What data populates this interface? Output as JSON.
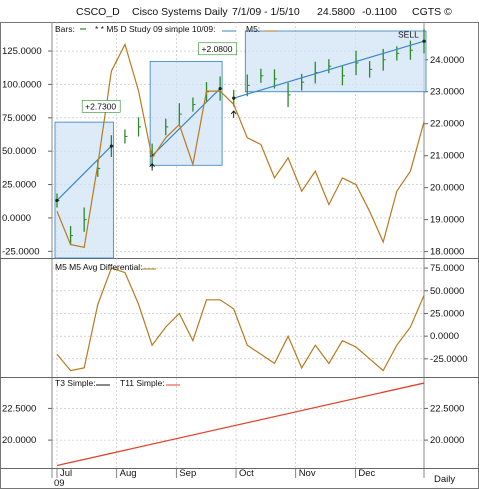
{
  "header": {
    "symbol": "CSCO_D",
    "name": "Cisco Systems Daily",
    "range": "7/1/09 - 1/5/10",
    "last": "24.5800",
    "change": "-0.1100",
    "brand": "CGTS ©"
  },
  "chart_data": [
    {
      "type": "line",
      "panel": "price",
      "legend": [
        "Bars:",
        "* * M5 D Study 09 simple 10/09:",
        "M5:"
      ],
      "annotations": [
        "+2.7300",
        "+2.0800",
        "SELL"
      ],
      "left_axis_ticks": [
        "125.0000",
        "100.0000",
        "75.0000",
        "50.0000",
        "25.0000",
        "0.0000",
        "-25.0000"
      ],
      "right_axis_ticks": [
        "24.0000",
        "23.0000",
        "22.0000",
        "21.0000",
        "20.0000",
        "19.0000",
        "18.0000"
      ],
      "left_ylim": [
        -30,
        140
      ],
      "right_ylim": [
        17.8,
        24.9
      ],
      "x": [
        "7/1",
        "7/8",
        "7/15",
        "7/22",
        "7/29",
        "8/5",
        "8/12",
        "8/19",
        "8/26",
        "9/2",
        "9/9",
        "9/16",
        "9/23",
        "9/30",
        "10/7",
        "10/14",
        "10/21",
        "10/28",
        "11/4",
        "11/11",
        "11/18",
        "11/25",
        "12/2",
        "12/9",
        "12/16",
        "12/23",
        "12/30",
        "1/5"
      ],
      "series": [
        {
          "role": "price",
          "values": [
            19.6,
            18.5,
            19.0,
            20.6,
            21.3,
            21.6,
            21.9,
            21.0,
            21.9,
            22.3,
            22.6,
            23.0,
            23.1,
            22.8,
            23.2,
            23.5,
            23.4,
            22.9,
            23.3,
            23.6,
            23.8,
            23.5,
            23.9,
            23.7,
            24.0,
            24.2,
            24.3,
            24.58
          ]
        },
        {
          "role": "oscillator",
          "values": [
            5,
            -20,
            -22,
            40,
            110,
            130,
            95,
            45,
            60,
            70,
            40,
            95,
            95,
            85,
            60,
            55,
            30,
            45,
            20,
            35,
            10,
            30,
            25,
            5,
            -18,
            20,
            35,
            72
          ]
        }
      ]
    },
    {
      "type": "line",
      "panel": "differential",
      "legend": [
        "M5 M5 Avg Differential:"
      ],
      "right_axis_ticks": [
        "75.0000",
        "50.0000",
        "25.0000",
        "0.0000",
        "-25.0000"
      ],
      "ylim": [
        -45,
        85
      ],
      "series": [
        {
          "values": [
            -20,
            -38,
            -35,
            35,
            75,
            70,
            35,
            -10,
            10,
            25,
            -5,
            40,
            40,
            30,
            -10,
            -20,
            -30,
            0,
            -35,
            -10,
            -30,
            -5,
            -12,
            -25,
            -38,
            -10,
            10,
            45
          ]
        }
      ]
    },
    {
      "type": "line",
      "panel": "t3t11",
      "legend": [
        "T3 Simple:",
        "T11 Simple:"
      ],
      "right_axis_ticks": [
        "22.5000",
        "20.0000"
      ],
      "ylim": [
        17.8,
        24.9
      ],
      "series": [
        {
          "values": [
            18.0,
            24.5
          ]
        }
      ]
    }
  ],
  "xaxis": {
    "months": [
      "Jul",
      "Aug",
      "Sep",
      "Oct",
      "Nov",
      "Dec"
    ],
    "year": "09",
    "period": "Daily"
  }
}
